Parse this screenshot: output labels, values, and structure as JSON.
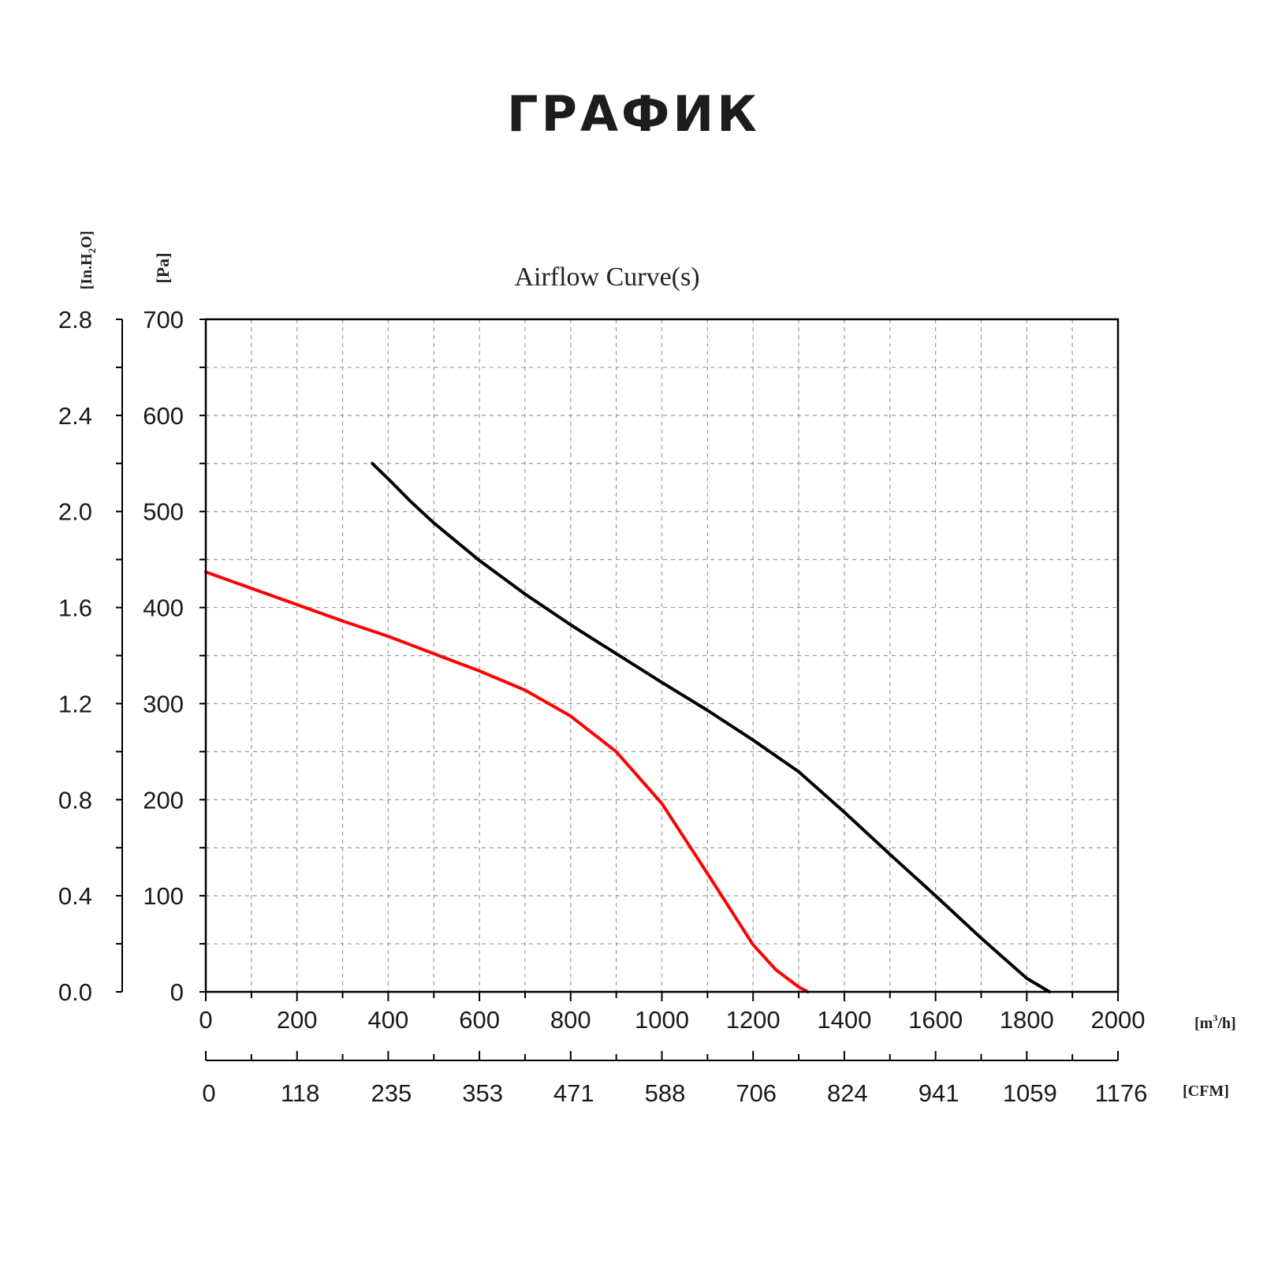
{
  "page": {
    "heading": "ГРАФИК"
  },
  "chart_data": {
    "type": "line",
    "title": "Airflow Curve(s)",
    "x": {
      "unit_label": "[m³/h]",
      "unit_base": "[m",
      "unit_sup": "3",
      "unit_rest": "/h]",
      "range": [
        0,
        2000
      ],
      "ticks": [
        "0",
        "200",
        "400",
        "600",
        "800",
        "1000",
        "1200",
        "1400",
        "1600",
        "1800",
        "2000"
      ]
    },
    "x2": {
      "unit_label": "[CFM]",
      "ticks": [
        "0",
        "118",
        "235",
        "353",
        "471",
        "588",
        "706",
        "824",
        "941",
        "1059",
        "1176"
      ]
    },
    "y": {
      "unit_label": "[Pa]",
      "range": [
        0,
        700
      ],
      "ticks": [
        "0",
        "100",
        "200",
        "300",
        "400",
        "500",
        "600",
        "700"
      ]
    },
    "y2": {
      "unit_label": "[In.H₂O]",
      "unit_base": "[In.H",
      "unit_sub": "2",
      "unit_rest": "O]",
      "ticks": [
        "0.0",
        "0.4",
        "0.8",
        "1.2",
        "1.6",
        "2.0",
        "2.4",
        "2.8"
      ]
    },
    "grid": true,
    "series": [
      {
        "color": "#ff0000",
        "points": [
          [
            0,
            437
          ],
          [
            100,
            420
          ],
          [
            200,
            403
          ],
          [
            300,
            386
          ],
          [
            400,
            370
          ],
          [
            500,
            352
          ],
          [
            600,
            334
          ],
          [
            700,
            314
          ],
          [
            800,
            287
          ],
          [
            900,
            250
          ],
          [
            1000,
            196
          ],
          [
            1100,
            123
          ],
          [
            1200,
            49
          ],
          [
            1250,
            23
          ],
          [
            1300,
            5
          ],
          [
            1320,
            0
          ]
        ]
      },
      {
        "color": "#000000",
        "points": [
          [
            365,
            550
          ],
          [
            400,
            534
          ],
          [
            450,
            510
          ],
          [
            500,
            488
          ],
          [
            600,
            449
          ],
          [
            700,
            414
          ],
          [
            800,
            382
          ],
          [
            900,
            352
          ],
          [
            1000,
            322
          ],
          [
            1100,
            293
          ],
          [
            1200,
            262
          ],
          [
            1300,
            229
          ],
          [
            1400,
            187
          ],
          [
            1500,
            143
          ],
          [
            1600,
            100
          ],
          [
            1700,
            56
          ],
          [
            1800,
            14
          ],
          [
            1850,
            0
          ]
        ]
      }
    ]
  }
}
